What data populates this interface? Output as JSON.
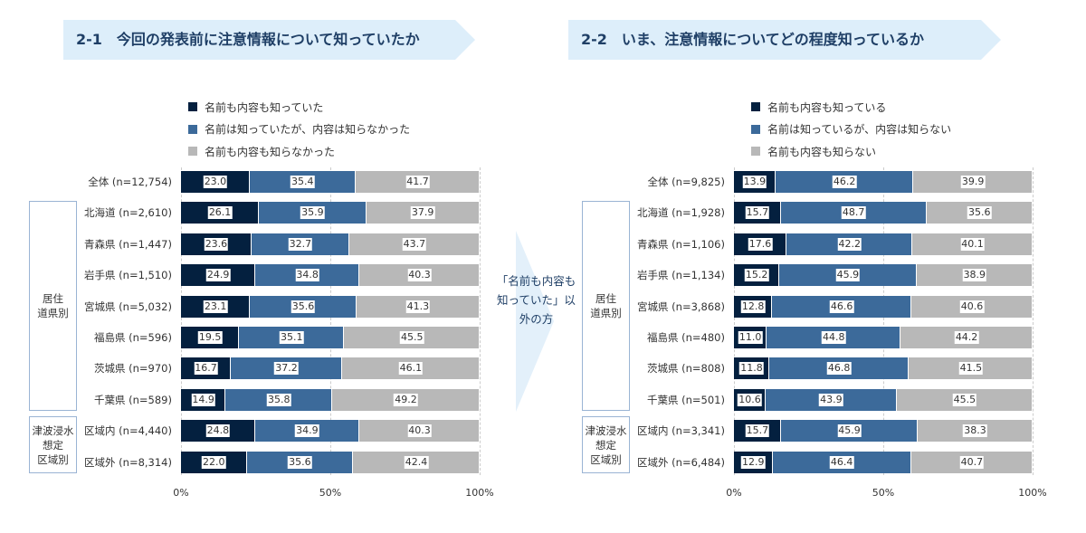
{
  "colors": {
    "known_both": "#04203f",
    "known_name": "#3c6a9a",
    "unknown": "#b8b8b8"
  },
  "middle_note": "「名前も内容も知っていた」以外の方",
  "chart_data": [
    {
      "type": "bar",
      "orientation": "horizontal-stacked-100",
      "title": "2-1　今回の発表前に注意情報について知っていたか",
      "legend": [
        "名前も内容も知っていた",
        "名前は知っていたが、内容は知らなかった",
        "名前も内容も知らなかった"
      ],
      "categories": [
        "全体 (n=12,754)",
        "北海道 (n=2,610)",
        "青森県 (n=1,447)",
        "岩手県 (n=1,510)",
        "宮城県 (n=5,032)",
        "福島県 (n=596)",
        "茨城県 (n=970)",
        "千葉県 (n=589)",
        "区域内 (n=4,440)",
        "区域外 (n=8,314)"
      ],
      "series": [
        {
          "name": "名前も内容も知っていた",
          "values": [
            23.0,
            26.1,
            23.6,
            24.9,
            23.1,
            19.5,
            16.7,
            14.9,
            24.8,
            22.0
          ]
        },
        {
          "name": "名前は知っていたが、内容は知らなかった",
          "values": [
            35.4,
            35.9,
            32.7,
            34.8,
            35.6,
            35.1,
            37.2,
            35.8,
            34.9,
            35.6
          ]
        },
        {
          "name": "名前も内容も知らなかった",
          "values": [
            41.7,
            37.9,
            43.7,
            40.3,
            41.3,
            45.5,
            46.1,
            49.2,
            40.3,
            42.4
          ]
        }
      ],
      "groups": [
        "居住\n道県別",
        "津波浸水\n想定\n区域別"
      ],
      "xticks": [
        "0%",
        "50%",
        "100%"
      ],
      "xlim": [
        0,
        100
      ]
    },
    {
      "type": "bar",
      "orientation": "horizontal-stacked-100",
      "title": "2-2　いま、注意情報についてどの程度知っているか",
      "legend": [
        "名前も内容も知っている",
        "名前は知っているが、内容は知らない",
        "名前も内容も知らない"
      ],
      "categories": [
        "全体 (n=9,825)",
        "北海道 (n=1,928)",
        "青森県 (n=1,106)",
        "岩手県 (n=1,134)",
        "宮城県 (n=3,868)",
        "福島県 (n=480)",
        "茨城県 (n=808)",
        "千葉県 (n=501)",
        "区域内 (n=3,341)",
        "区域外 (n=6,484)"
      ],
      "series": [
        {
          "name": "名前も内容も知っている",
          "values": [
            13.9,
            15.7,
            17.6,
            15.2,
            12.8,
            11.0,
            11.8,
            10.6,
            15.7,
            12.9
          ]
        },
        {
          "name": "名前は知っているが、内容は知らない",
          "values": [
            46.2,
            48.7,
            42.2,
            45.9,
            46.6,
            44.8,
            46.8,
            43.9,
            45.9,
            46.4
          ]
        },
        {
          "name": "名前も内容も知らない",
          "values": [
            39.9,
            35.6,
            40.1,
            38.9,
            40.6,
            44.2,
            41.5,
            45.5,
            38.3,
            40.7
          ]
        }
      ],
      "groups": [
        "居住\n道県別",
        "津波浸水\n想定\n区域別"
      ],
      "xticks": [
        "0%",
        "50%",
        "100%"
      ],
      "xlim": [
        0,
        100
      ]
    }
  ]
}
